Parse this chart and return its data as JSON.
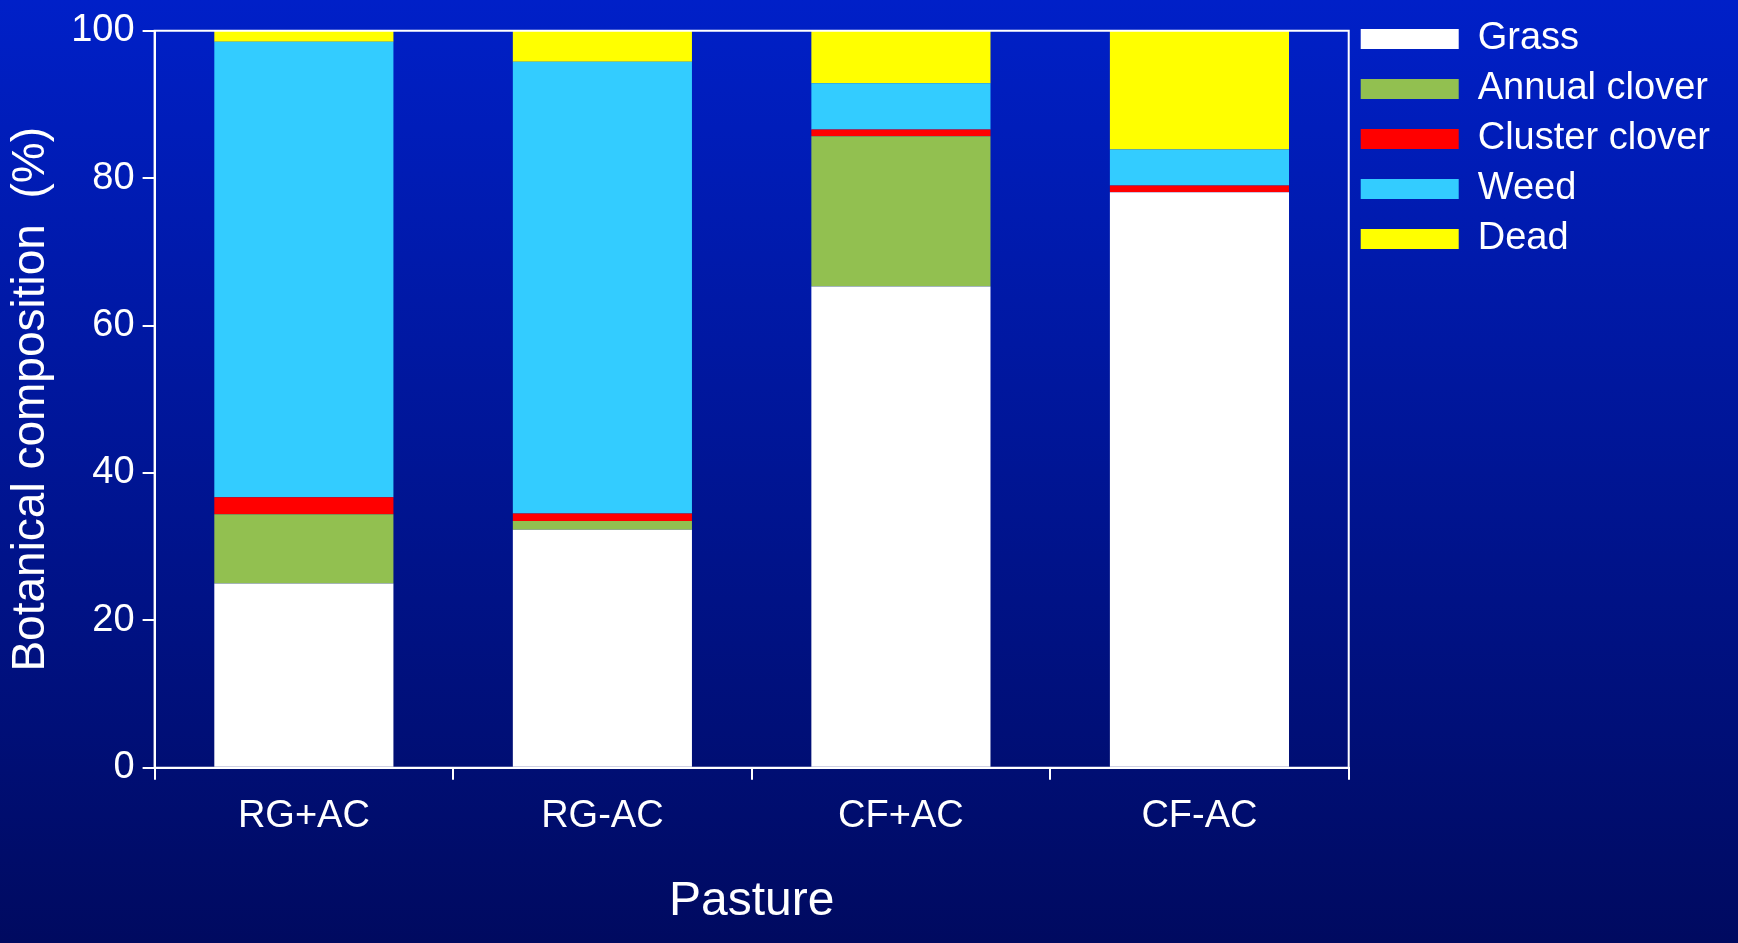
{
  "chart_data": {
    "type": "bar",
    "stacked": true,
    "xlabel": "Pasture",
    "ylabel": "Botanical composition  (%)",
    "categories": [
      "RG+AC",
      "RG-AC",
      "CF+AC",
      "CF-AC"
    ],
    "series": [
      {
        "name": "Grass",
        "color": "#ffffff",
        "values": [
          25,
          32.3,
          65.3,
          78.1
        ]
      },
      {
        "name": "Annual clover",
        "color": "#92c050",
        "values": [
          9.4,
          1.2,
          20.4,
          0
        ]
      },
      {
        "name": "Cluster clover",
        "color": "#ff0000",
        "values": [
          2.3,
          1.0,
          0.9,
          0.9
        ]
      },
      {
        "name": "Weed",
        "color": "#33ccff",
        "values": [
          61.8,
          61.3,
          6.3,
          4.9
        ]
      },
      {
        "name": "Dead",
        "color": "#ffff00",
        "values": [
          1.5,
          4.2,
          7.1,
          16.1
        ]
      }
    ],
    "ylim": [
      0,
      100
    ],
    "yticks": [
      0,
      20,
      40,
      60,
      80,
      100
    ],
    "grid": false,
    "legend": "top right"
  }
}
